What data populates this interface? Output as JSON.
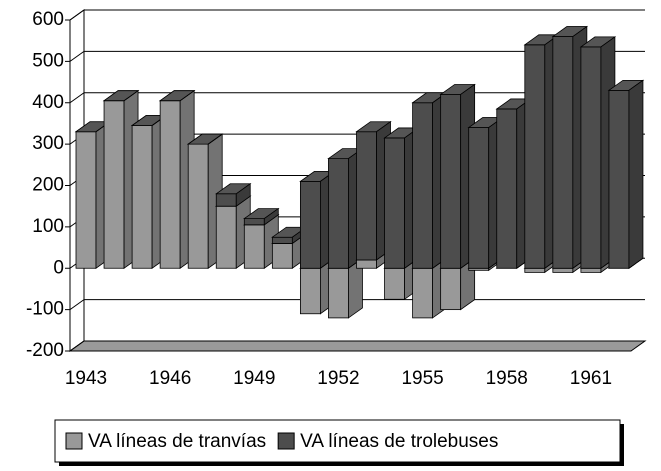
{
  "chart_data": {
    "type": "bar3d_stacked",
    "categories": [
      "1943",
      null,
      null,
      "1946",
      null,
      null,
      "1949",
      null,
      null,
      "1952",
      null,
      null,
      "1955",
      null,
      null,
      "1958",
      null,
      null,
      "1961",
      null
    ],
    "series": [
      {
        "name": "VA líneas de tranvías",
        "color": "#999999",
        "values": [
          330,
          405,
          345,
          405,
          300,
          150,
          105,
          60,
          -110,
          -120,
          20,
          -75,
          -120,
          -100,
          -5,
          0,
          -10,
          -10,
          -10,
          0
        ]
      },
      {
        "name": "VA líneas de trolebuses",
        "color": "#4d4d4d",
        "values": [
          0,
          0,
          0,
          0,
          0,
          30,
          15,
          15,
          210,
          265,
          310,
          315,
          400,
          420,
          340,
          385,
          540,
          560,
          535,
          430
        ]
      }
    ],
    "ylim": [
      -200,
      600
    ],
    "yticks": [
      -200,
      -100,
      0,
      100,
      200,
      300,
      400,
      500,
      600
    ],
    "grid": true,
    "legend": "bottom"
  }
}
